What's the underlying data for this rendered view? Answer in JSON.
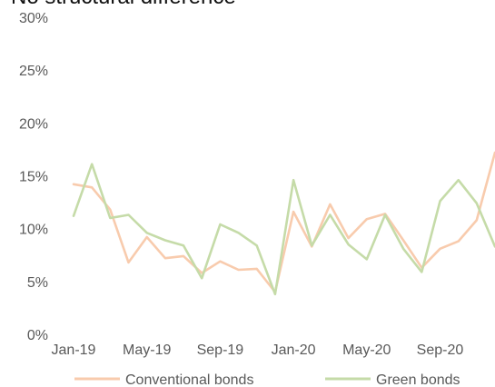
{
  "chart_data": {
    "type": "line",
    "title": "No structural difference",
    "xlabel": "",
    "ylabel": "",
    "ylim": [
      0,
      30
    ],
    "y_ticks": [
      "0%",
      "5%",
      "10%",
      "15%",
      "20%",
      "25%",
      "30%"
    ],
    "x_tick_labels": [
      "Jan-19",
      "May-19",
      "Sep-19",
      "Jan-20",
      "May-20",
      "Sep-20"
    ],
    "x": [
      "Jan-19",
      "Feb-19",
      "Mar-19",
      "Apr-19",
      "May-19",
      "Jun-19",
      "Jul-19",
      "Aug-19",
      "Sep-19",
      "Oct-19",
      "Nov-19",
      "Dec-19",
      "Jan-20",
      "Feb-20",
      "Mar-20",
      "Apr-20",
      "May-20",
      "Jun-20",
      "Jul-20",
      "Aug-20",
      "Sep-20",
      "Oct-20",
      "Nov-20",
      "Dec-20"
    ],
    "grid": false,
    "legend_position": "bottom",
    "series": [
      {
        "name": "Conventional bonds",
        "color": "#F8CBAD",
        "values": [
          14.2,
          13.9,
          11.8,
          6.8,
          9.2,
          7.2,
          7.4,
          5.8,
          6.9,
          6.1,
          6.2,
          4.0,
          11.6,
          8.3,
          12.3,
          9.1,
          10.9,
          11.4,
          8.9,
          6.3,
          8.1,
          8.8,
          10.8,
          17.2
        ]
      },
      {
        "name": "Green bonds",
        "color": "#C5DBA8",
        "values": [
          11.2,
          16.1,
          11.0,
          11.3,
          9.6,
          8.9,
          8.4,
          5.3,
          10.4,
          9.6,
          8.4,
          3.8,
          14.6,
          8.4,
          11.3,
          8.5,
          7.1,
          11.3,
          8.1,
          5.9,
          12.6,
          14.6,
          12.4,
          8.3
        ]
      }
    ]
  }
}
